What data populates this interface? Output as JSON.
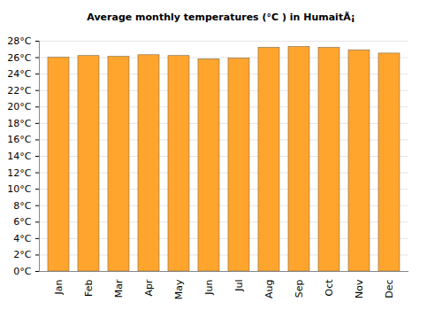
{
  "chart_data": {
    "type": "bar",
    "title": "Average monthly temperatures (°C ) in HumaitÃ¡",
    "categories": [
      "Jan",
      "Feb",
      "Mar",
      "Apr",
      "May",
      "Jun",
      "Jul",
      "Aug",
      "Sep",
      "Oct",
      "Nov",
      "Dec"
    ],
    "values": [
      26.0,
      26.2,
      26.1,
      26.3,
      26.2,
      25.8,
      25.9,
      27.2,
      27.3,
      27.2,
      26.9,
      26.5
    ],
    "color": "#ffa52e",
    "ylim": [
      0,
      28
    ],
    "yticks": [
      {
        "value": 0,
        "label": "0°C"
      },
      {
        "value": 2,
        "label": "2°C"
      },
      {
        "value": 4,
        "label": "4°C"
      },
      {
        "value": 6,
        "label": "6°C"
      },
      {
        "value": 8,
        "label": "8°C"
      },
      {
        "value": 10,
        "label": "10°C"
      },
      {
        "value": 12,
        "label": "12°C"
      },
      {
        "value": 14,
        "label": "14°C"
      },
      {
        "value": 16,
        "label": "16°C"
      },
      {
        "value": 18,
        "label": "18°C"
      },
      {
        "value": 20,
        "label": "20°C"
      },
      {
        "value": 22,
        "label": "22°C"
      },
      {
        "value": 24,
        "label": "24°C"
      },
      {
        "value": 26,
        "label": "26°C"
      },
      {
        "value": 28,
        "label": "28°C"
      }
    ],
    "grid": true
  }
}
